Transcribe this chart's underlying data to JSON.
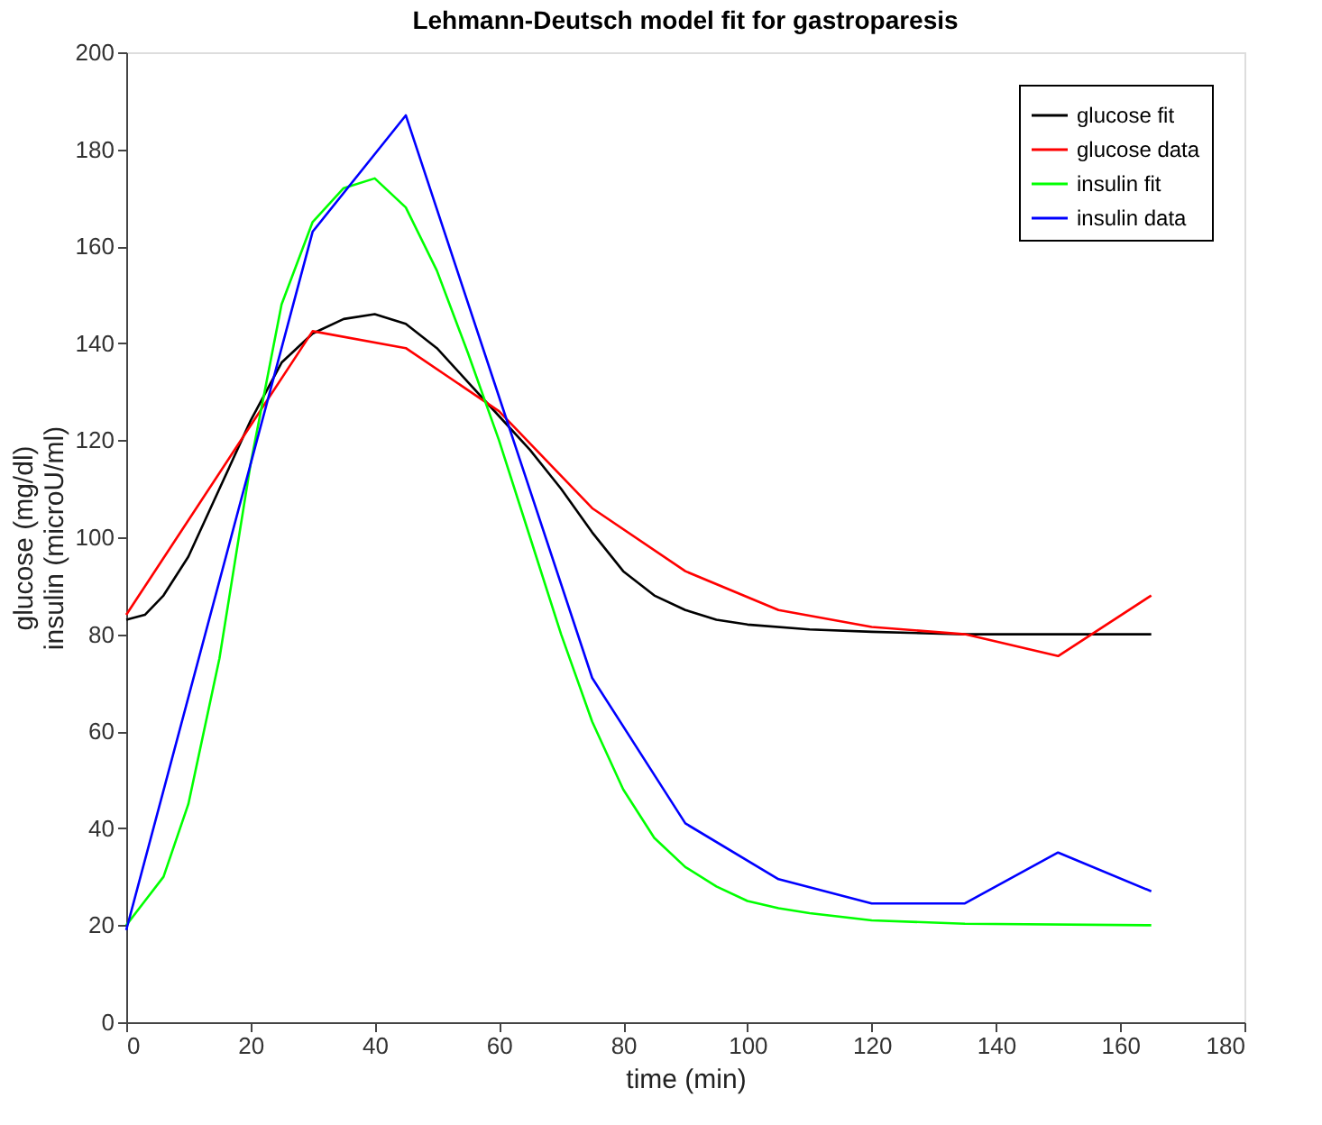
{
  "chart_data": {
    "type": "line",
    "title": "Lehmann-Deutsch model fit for gastroparesis",
    "xlabel": "time (min)",
    "ylabel": "glucose (mg/dl)\ninsulin (microU/ml)",
    "xlim": [
      0,
      180
    ],
    "xticks": [
      0,
      20,
      40,
      60,
      80,
      100,
      120,
      140,
      160,
      180
    ],
    "ylim": [
      0,
      200
    ],
    "yticks": [
      0,
      20,
      40,
      60,
      80,
      100,
      120,
      140,
      160,
      180,
      200
    ],
    "grid": false,
    "legend": "top right",
    "marker": "none",
    "line_style": "solid",
    "series": [
      {
        "name": "glucose fit",
        "color": "#000000",
        "x": [
          0,
          3,
          6,
          10,
          15,
          20,
          25,
          30,
          35,
          40,
          45,
          50,
          55,
          60,
          65,
          70,
          75,
          80,
          85,
          90,
          95,
          100,
          110,
          120,
          135,
          165
        ],
        "values": [
          83,
          84,
          88,
          96,
          110,
          124,
          136,
          142,
          145,
          146,
          144,
          139,
          132,
          125,
          118,
          110,
          101,
          93,
          88,
          85,
          83,
          82,
          81,
          80.5,
          80,
          80
        ]
      },
      {
        "name": "glucose data",
        "color": "#ff0000",
        "x": [
          0,
          30,
          45,
          60,
          75,
          90,
          105,
          120,
          135,
          150,
          165
        ],
        "values": [
          84,
          142.5,
          139,
          126,
          106,
          93,
          85,
          81.5,
          80,
          75.5,
          88
        ]
      },
      {
        "name": "insulin fit",
        "color": "#00ff00",
        "x": [
          0,
          3,
          6,
          10,
          15,
          20,
          25,
          30,
          35,
          40,
          45,
          50,
          55,
          60,
          65,
          70,
          75,
          80,
          85,
          90,
          95,
          100,
          105,
          110,
          120,
          135,
          165
        ],
        "values": [
          20,
          25,
          30,
          45,
          75,
          115,
          148,
          165,
          172,
          174,
          168,
          155,
          138,
          120,
          100,
          80,
          62,
          48,
          38,
          32,
          28,
          25,
          23.5,
          22.5,
          21,
          20.3,
          20
        ]
      },
      {
        "name": "insulin data",
        "color": "#0000ff",
        "x": [
          0,
          30,
          45,
          60,
          75,
          90,
          105,
          120,
          135,
          150,
          165
        ],
        "values": [
          19,
          163,
          187,
          129,
          71,
          41,
          29.5,
          24.5,
          24.5,
          35,
          27
        ]
      }
    ]
  }
}
